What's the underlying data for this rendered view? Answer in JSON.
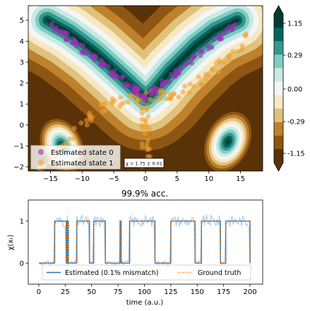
{
  "colors": {
    "state0": "#9b30b5",
    "state1": "#f0a030",
    "estimated": "#1f77b4",
    "truth": "#ff7f0e",
    "raw": "#aecbe8",
    "colormap": [
      "#5a3207",
      "#8e5612",
      "#bf812c",
      "#dfc27d",
      "#f6e8c3",
      "#f5f5f5",
      "#c7eae5",
      "#80cdc1",
      "#35978f",
      "#01665e",
      "#003c30"
    ]
  },
  "chart_data": [
    {
      "type": "contour-scatter",
      "xlim": [
        -18.5,
        18.5
      ],
      "ylim": [
        -2.2,
        5.7
      ],
      "x_ticks": [
        -15,
        -10,
        -5,
        0,
        5,
        10,
        15
      ],
      "y_ticks": [
        -2,
        -1,
        0,
        1,
        2,
        3,
        4,
        5
      ],
      "x_tick_labels": [
        "−15",
        "−10",
        "−5",
        "0",
        "5",
        "10",
        "15"
      ],
      "y_tick_labels": [
        "−2",
        "−1",
        "0",
        "1",
        "2",
        "3",
        "4",
        "5"
      ],
      "colorbar_ticks": [
        1.15,
        0.29,
        0.0,
        -0.29,
        -1.15
      ],
      "colorbar_labels": [
        "1.15",
        "0.29",
        "0.00",
        "-0.29",
        "-1.15"
      ],
      "legend": [
        "Estimated state 0",
        "Estimated state 1"
      ],
      "legend_position": "lower-left",
      "annotation": "χ = 1.75 ± 0.01",
      "title": "99.9% acc."
    },
    {
      "type": "line",
      "xlabel": "time (a.u.)",
      "ylabel": "χ(xₜ)",
      "xlim": [
        -10,
        212
      ],
      "ylim": [
        -0.5,
        1.5
      ],
      "x_ticks": [
        0,
        25,
        50,
        75,
        100,
        125,
        150,
        175,
        200
      ],
      "y_ticks": [
        0,
        1
      ],
      "legend_position": "lower-center",
      "series": [
        {
          "name": "Estimated (0.1% mismatch)",
          "step_intervals": [
            [
              15,
              26
            ],
            [
              27,
              28
            ],
            [
              36,
              48
            ],
            [
              52,
              63
            ],
            [
              77,
              78
            ],
            [
              86,
              110
            ],
            [
              125,
              148
            ],
            [
              154,
              172
            ],
            [
              177,
              200
            ]
          ]
        },
        {
          "name": "Ground truth",
          "step_intervals": [
            [
              15,
              26
            ],
            [
              27,
              28
            ],
            [
              36,
              48
            ],
            [
              52,
              63
            ],
            [
              77,
              78
            ],
            [
              86,
              110
            ],
            [
              125,
              148
            ],
            [
              154,
              172
            ],
            [
              177,
              200
            ]
          ]
        }
      ]
    }
  ]
}
